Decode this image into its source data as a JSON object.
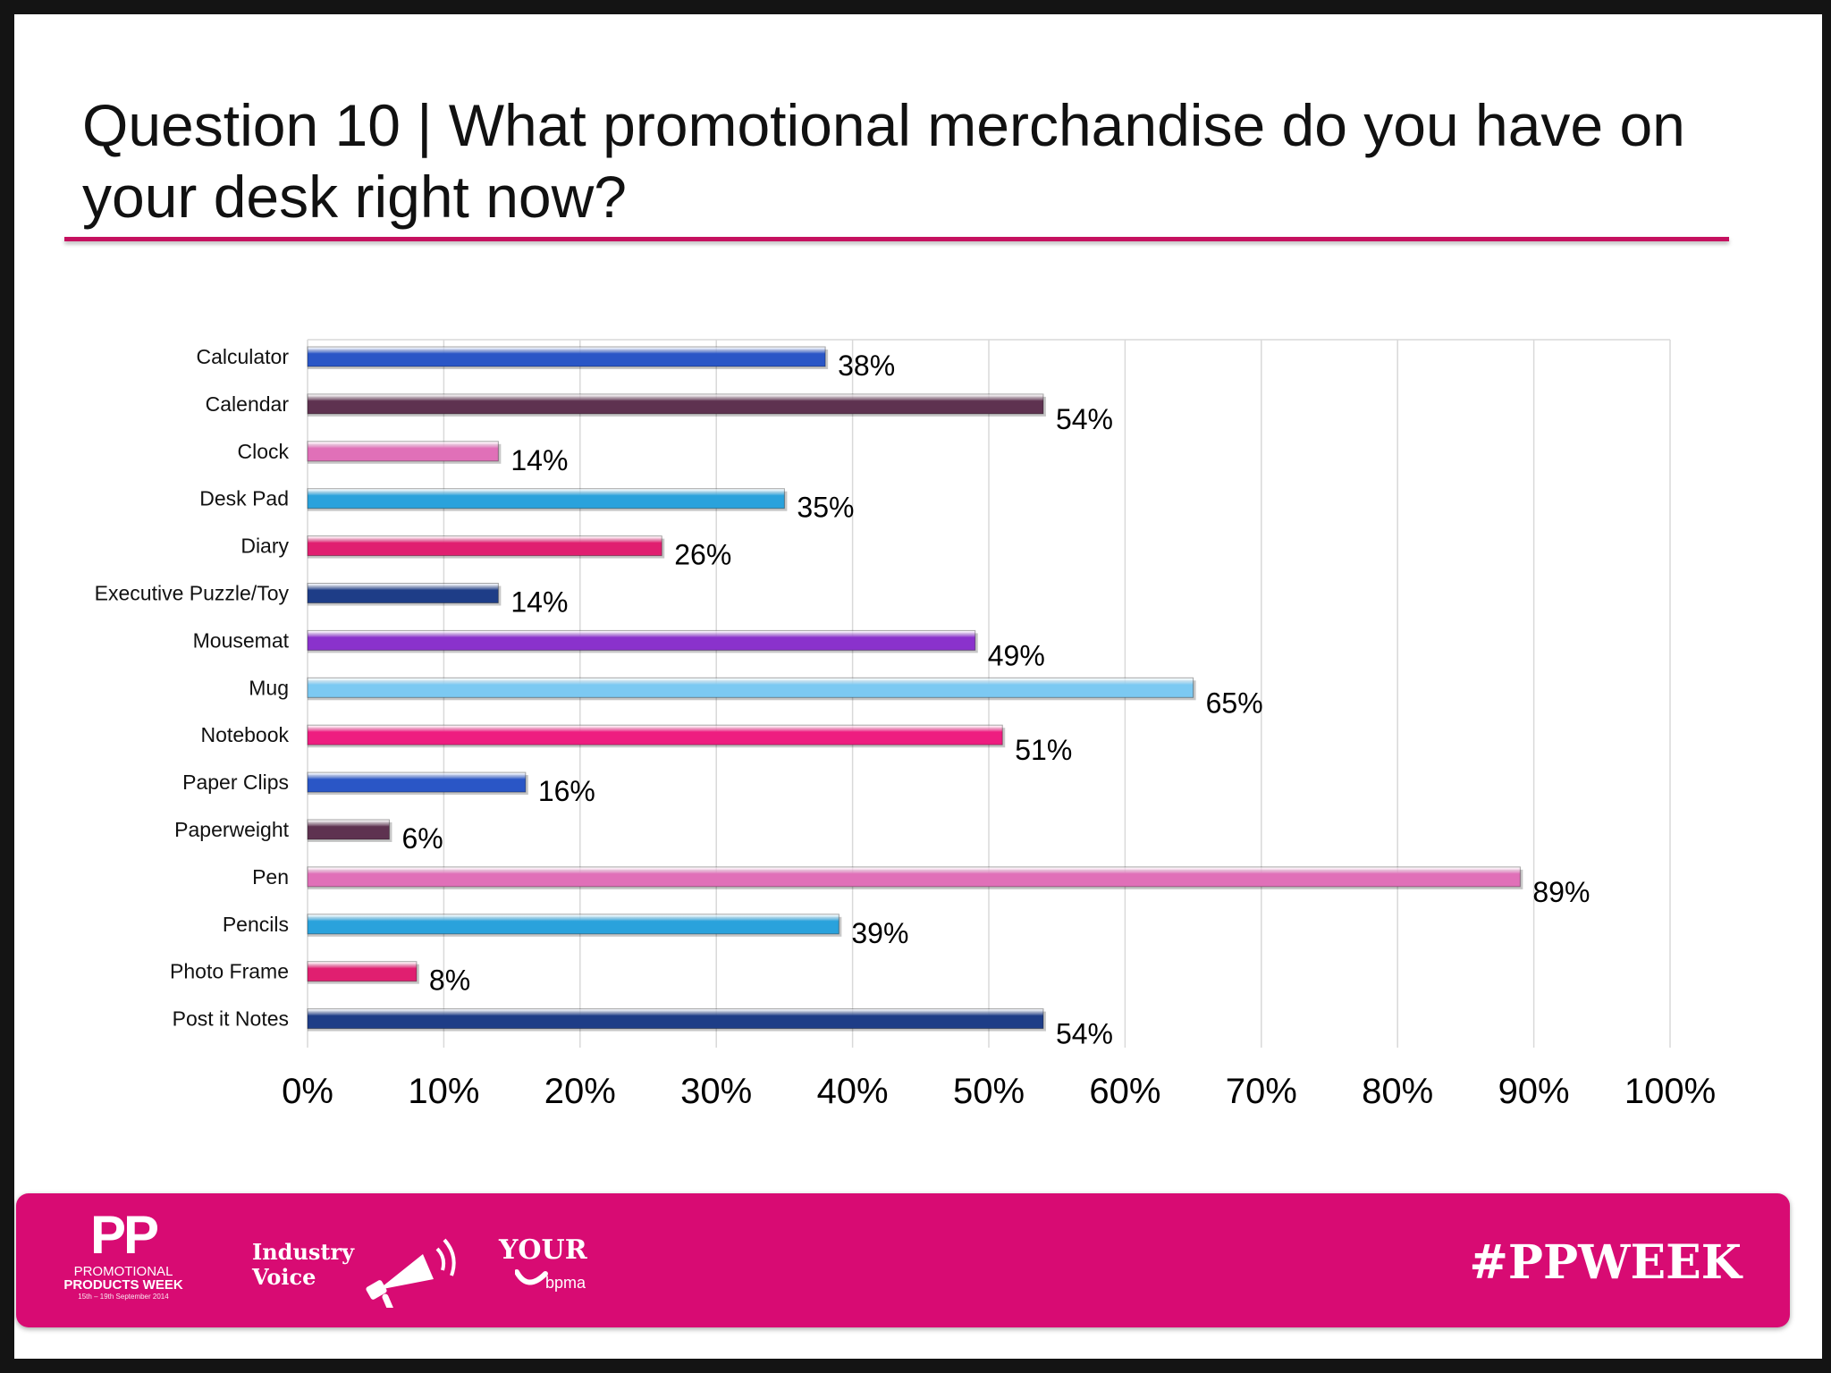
{
  "slide": {
    "title": "Question 10 | What promotional merchandise do you have on your desk right now?"
  },
  "chart_data": {
    "type": "bar",
    "orientation": "horizontal",
    "categories": [
      "Calculator",
      "Calendar",
      "Clock",
      "Desk Pad",
      "Diary",
      "Executive Puzzle/Toy",
      "Mousemat",
      "Mug",
      "Notebook",
      "Paper Clips",
      "Paperweight",
      "Pen",
      "Pencils",
      "Photo Frame",
      "Post it Notes"
    ],
    "values": [
      38,
      54,
      14,
      35,
      26,
      14,
      49,
      65,
      51,
      16,
      6,
      89,
      39,
      8,
      54
    ],
    "data_labels": [
      "38%",
      "54%",
      "14%",
      "35%",
      "26%",
      "14%",
      "49%",
      "65%",
      "51%",
      "16%",
      "6%",
      "89%",
      "39%",
      "8%",
      "54%"
    ],
    "bar_colors": [
      "#2a56c6",
      "#5e3250",
      "#e070b8",
      "#2aa2dc",
      "#e01f70",
      "#1e3d87",
      "#8a32cc",
      "#7cc9f2",
      "#ee1d80",
      "#2a56c6",
      "#5e3250",
      "#e070b8",
      "#2aa2dc",
      "#e01f70",
      "#1e3d87"
    ],
    "xlim": [
      0,
      100
    ],
    "x_ticks": [
      "0%",
      "10%",
      "20%",
      "30%",
      "40%",
      "50%",
      "60%",
      "70%",
      "80%",
      "90%",
      "100%"
    ],
    "grid": true,
    "legend": "none"
  },
  "footer": {
    "logo_pp": {
      "big": "PP",
      "line1": "PROMOTIONAL",
      "line2": "PRODUCTS WEEK",
      "line3": "15th – 19th September 2014"
    },
    "logo_iv": {
      "line1": "Industry",
      "line2": "Voice"
    },
    "logo_your": {
      "word": "YOUR",
      "sub": "bpma"
    },
    "hashtag": "#PPWEEK",
    "background_color": "#d80b73"
  }
}
